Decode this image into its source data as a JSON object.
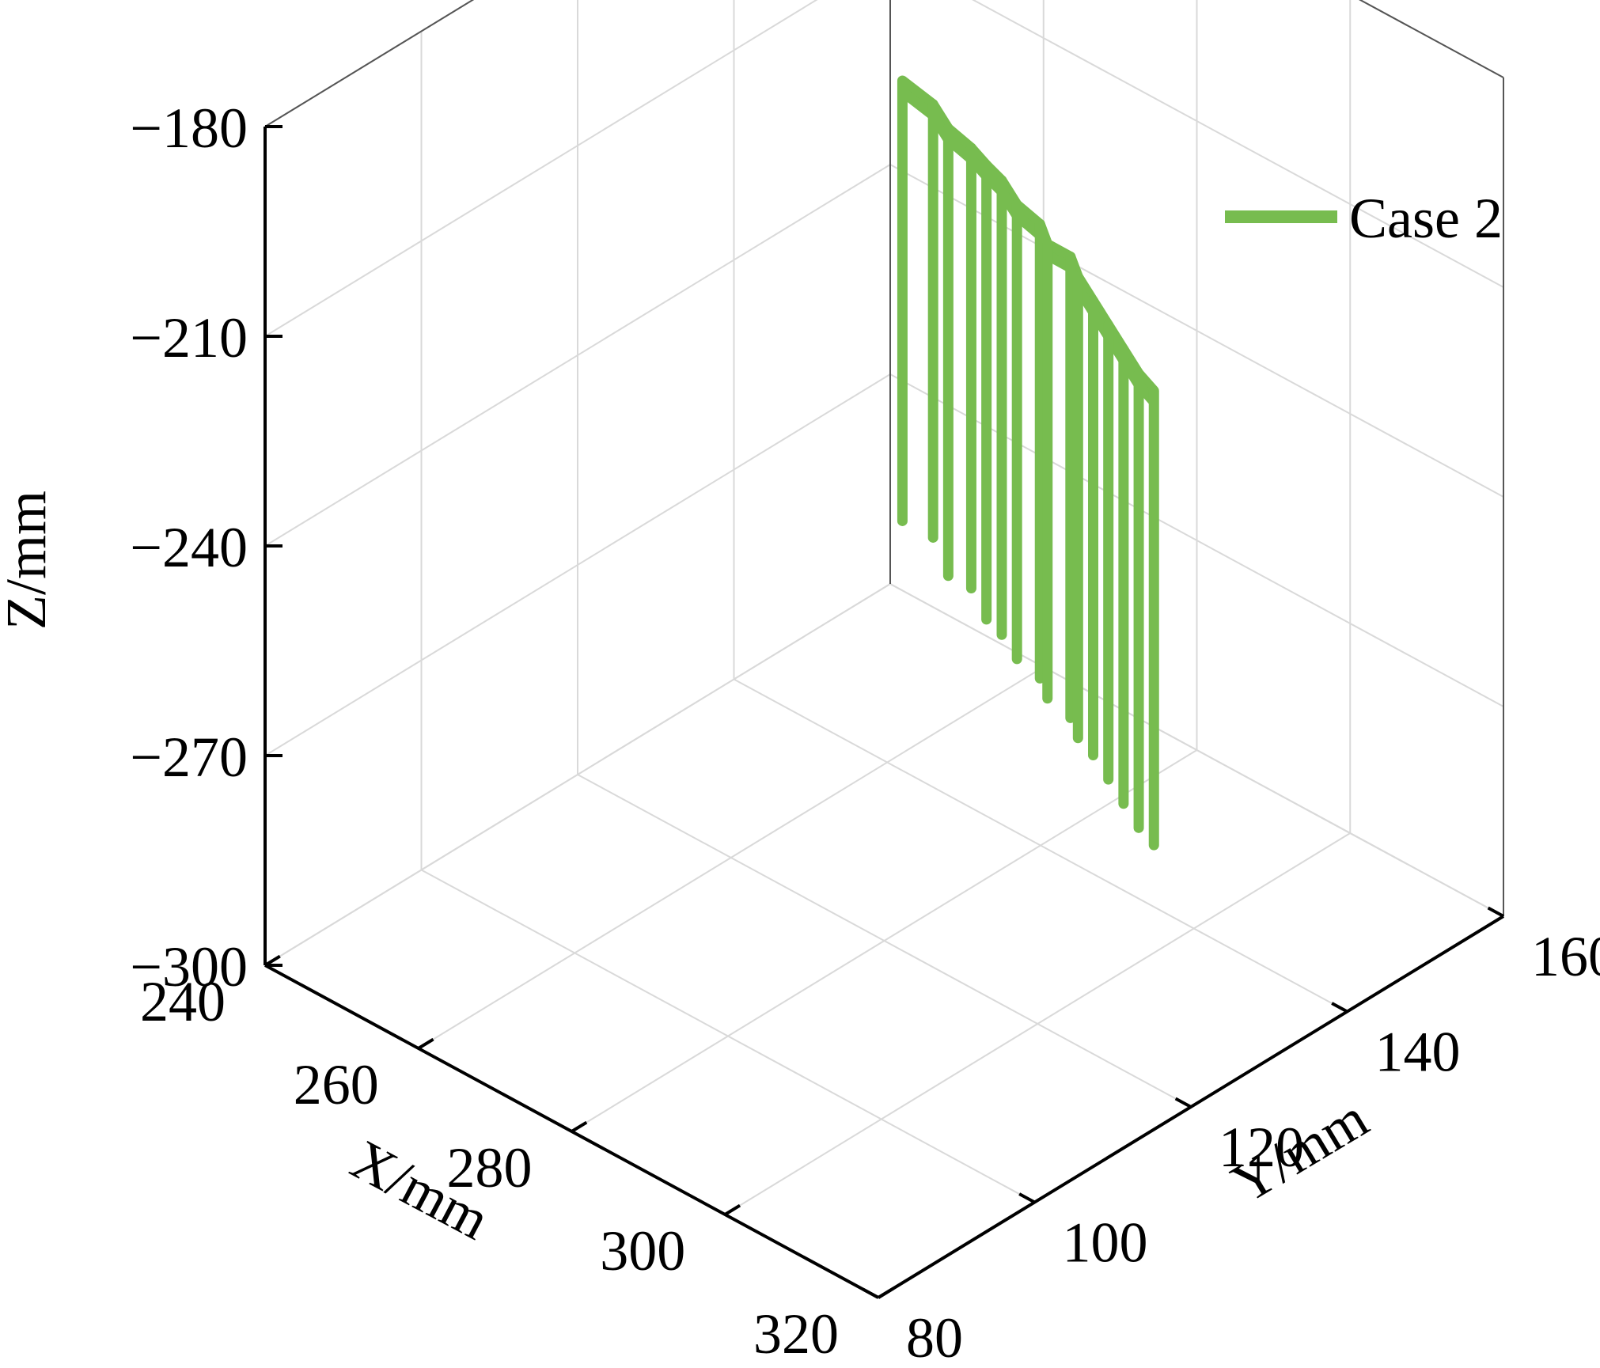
{
  "chart_data": {
    "type": "line",
    "projection": "3d",
    "legend": {
      "position": "top-right",
      "entries": [
        {
          "label": "Case 2",
          "color": "#77bc4f"
        }
      ]
    },
    "grid": true,
    "axes": {
      "x": {
        "label": "X/mm",
        "range": [
          240,
          320
        ],
        "ticks": [
          "240",
          "260",
          "280",
          "300",
          "320"
        ]
      },
      "y": {
        "label": "Y/mm",
        "range": [
          80,
          160
        ],
        "ticks": [
          "80",
          "100",
          "120",
          "140",
          "160"
        ]
      },
      "z": {
        "label": "Z/mm",
        "range": [
          -300,
          -180
        ],
        "ticks": [
          "−300",
          "−270",
          "−240",
          "−210",
          "−180"
        ]
      }
    },
    "series": [
      {
        "name": "Case 2",
        "color": "#77bc4f",
        "top_z": [
          -200,
          -201,
          -202,
          -203,
          -203,
          -204,
          -205,
          -206,
          -207,
          -207,
          -208,
          -209,
          -210,
          -211,
          -212,
          -212
        ],
        "points": [
          {
            "x": 263,
            "y": 139,
            "z_bottom": -263
          },
          {
            "x": 267,
            "y": 139,
            "z_bottom": -263
          },
          {
            "x": 270,
            "y": 138,
            "z_bottom": -266
          },
          {
            "x": 273,
            "y": 138,
            "z_bottom": -266
          },
          {
            "x": 276,
            "y": 137,
            "z_bottom": -268
          },
          {
            "x": 278,
            "y": 137,
            "z_bottom": -269
          },
          {
            "x": 281,
            "y": 136,
            "z_bottom": -270
          },
          {
            "x": 284,
            "y": 136,
            "z_bottom": -271
          },
          {
            "x": 286,
            "y": 135,
            "z_bottom": -272
          },
          {
            "x": 289,
            "y": 135,
            "z_bottom": -273
          },
          {
            "x": 291,
            "y": 134,
            "z_bottom": -274
          },
          {
            "x": 294,
            "y": 133,
            "z_bottom": -274
          },
          {
            "x": 297,
            "y": 132,
            "z_bottom": -275
          },
          {
            "x": 300,
            "y": 131,
            "z_bottom": -276
          },
          {
            "x": 303,
            "y": 130,
            "z_bottom": -277
          },
          {
            "x": 306,
            "y": 129,
            "z_bottom": -277
          }
        ]
      }
    ]
  }
}
